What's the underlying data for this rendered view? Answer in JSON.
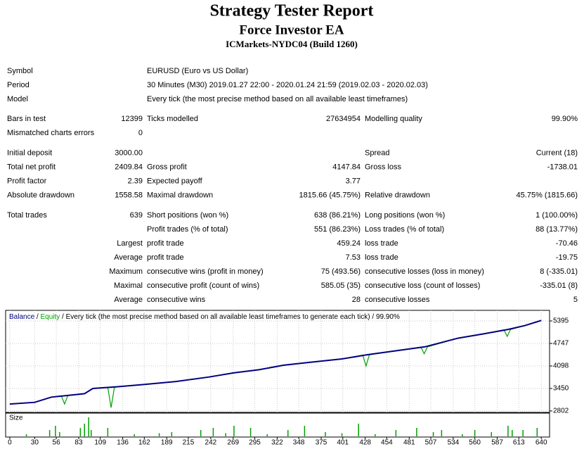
{
  "title": "Strategy Tester Report",
  "subtitle": "Force Investor EA",
  "server": "ICMarkets-NYDC04 (Build 1260)",
  "info": [
    {
      "label": "Symbol",
      "value": "EURUSD (Euro vs US Dollar)"
    },
    {
      "label": "Period",
      "value": "30 Minutes (M30) 2019.01.27 22:00 - 2020.01.24 21:59 (2019.02.03 - 2020.02.03)"
    },
    {
      "label": "Model",
      "value": "Every tick (the most precise method based on all available least timeframes)"
    }
  ],
  "stats": [
    [
      [
        "Bars in test",
        "12399",
        "Ticks modelled",
        "27634954",
        "Modelling quality",
        "99.90%"
      ],
      [
        "Mismatched charts errors",
        "0",
        null,
        null,
        null,
        null
      ]
    ],
    [
      [
        "Initial deposit",
        "3000.00",
        null,
        null,
        "Spread",
        "Current (18)"
      ],
      [
        "Total net profit",
        "2409.84",
        "Gross profit",
        "4147.84",
        "Gross loss",
        "-1738.01"
      ],
      [
        "Profit factor",
        "2.39",
        "Expected payoff",
        "3.77",
        null,
        null
      ],
      [
        "Absolute drawdown",
        "1558.58",
        "Maximal drawdown",
        "1815.66 (45.75%)",
        "Relative drawdown",
        "45.75% (1815.66)"
      ]
    ],
    [
      [
        "Total trades",
        "639",
        "Short positions (won %)",
        "638 (86.21%)",
        "Long positions (won %)",
        "1 (100.00%)"
      ],
      [
        null,
        null,
        "Profit trades (% of total)",
        "551 (86.23%)",
        "Loss trades (% of total)",
        "88 (13.77%)"
      ],
      [
        null,
        "Largest",
        "profit trade",
        "459.24",
        "loss trade",
        "-70.46"
      ],
      [
        null,
        "Average",
        "profit trade",
        "7.53",
        "loss trade",
        "-19.75"
      ],
      [
        null,
        "Maximum",
        "consecutive wins (profit in money)",
        "75 (493.56)",
        "consecutive losses (loss in money)",
        "8 (-335.01)"
      ],
      [
        null,
        "Maximal",
        "consecutive profit (count of wins)",
        "585.05 (35)",
        "consecutive loss (count of losses)",
        "-335.01 (8)"
      ],
      [
        null,
        "Average",
        "consecutive wins",
        "28",
        "consecutive losses",
        "5"
      ]
    ]
  ],
  "chart_data": {
    "type": "line",
    "separator": " / ",
    "header_text": "Every tick (the most precise method based on all available least timeframes to generate each tick) / 99.90%",
    "size_label": "Size",
    "xlim": [
      -5,
      650
    ],
    "ylim": [
      2760,
      5700
    ],
    "xticks": [
      0,
      30,
      56,
      83,
      109,
      136,
      162,
      189,
      215,
      242,
      269,
      295,
      322,
      348,
      375,
      401,
      428,
      454,
      481,
      507,
      534,
      560,
      587,
      613,
      640
    ],
    "yticks": [
      2802,
      3450,
      4098,
      4747,
      5395
    ],
    "grid": true,
    "series": [
      {
        "name": "Balance",
        "color": "#00007f",
        "x": [
          0,
          30,
          50,
          70,
          90,
          100,
          130,
          160,
          200,
          240,
          270,
          300,
          330,
          360,
          400,
          430,
          460,
          500,
          540,
          570,
          600,
          620,
          640
        ],
        "values": [
          3000,
          3050,
          3200,
          3250,
          3300,
          3450,
          3500,
          3560,
          3650,
          3780,
          3900,
          3990,
          4120,
          4200,
          4300,
          4420,
          4520,
          4650,
          4900,
          5020,
          5150,
          5260,
          5409
        ]
      },
      {
        "name": "Equity",
        "color": "#00a000",
        "x": [
          0,
          30,
          50,
          62,
          66,
          70,
          90,
          100,
          118,
          122,
          126,
          130,
          160,
          200,
          240,
          270,
          300,
          330,
          360,
          400,
          425,
          429,
          433,
          460,
          495,
          499,
          503,
          540,
          570,
          595,
          599,
          603,
          620,
          640
        ],
        "values": [
          3000,
          3050,
          3200,
          3240,
          3000,
          3250,
          3300,
          3450,
          3480,
          2900,
          3480,
          3500,
          3560,
          3650,
          3780,
          3900,
          3990,
          4120,
          4200,
          4300,
          4410,
          4100,
          4420,
          4520,
          4640,
          4450,
          4650,
          4900,
          5020,
          5140,
          4950,
          5150,
          5260,
          5409
        ]
      }
    ],
    "size": {
      "color": "#00a000",
      "x": [
        20,
        48,
        55,
        60,
        85,
        90,
        95,
        98,
        118,
        150,
        180,
        195,
        230,
        245,
        260,
        270,
        290,
        310,
        335,
        355,
        380,
        400,
        420,
        440,
        465,
        490,
        510,
        520,
        545,
        560,
        580,
        600,
        605,
        618,
        635
      ],
      "values": [
        0.1,
        0.3,
        0.5,
        0.2,
        0.4,
        0.6,
        0.9,
        0.3,
        0.4,
        0.1,
        0.15,
        0.2,
        0.3,
        0.4,
        0.15,
        0.5,
        0.4,
        0.1,
        0.3,
        0.5,
        0.2,
        0.15,
        0.6,
        0.1,
        0.3,
        0.4,
        0.2,
        0.3,
        0.1,
        0.3,
        0.2,
        0.5,
        0.3,
        0.3,
        0.4
      ]
    }
  }
}
